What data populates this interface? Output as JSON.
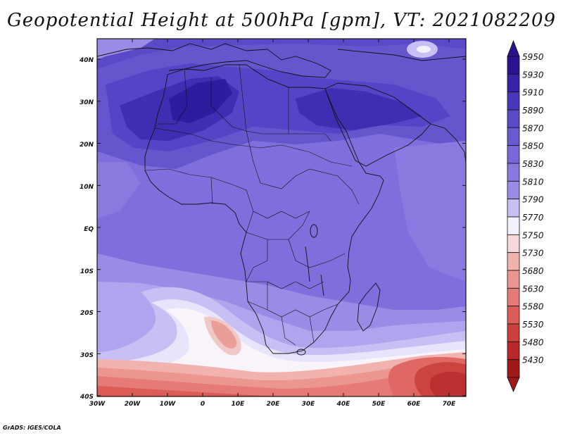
{
  "title": "Geopotential Height at 500hPa [gpm], VT: 2021082209",
  "credit": "GrADS: IGES/COLA",
  "lat_labels": [
    "40N",
    "30N",
    "20N",
    "10N",
    "EQ",
    "10S",
    "20S",
    "30S",
    "40S"
  ],
  "lon_labels": [
    "30W",
    "20W",
    "10W",
    "0",
    "10E",
    "20E",
    "30E",
    "40E",
    "50E",
    "60E",
    "70E"
  ],
  "colorbar": {
    "levels": [
      "5950",
      "5930",
      "5910",
      "5890",
      "5870",
      "5850",
      "5830",
      "5810",
      "5790",
      "5770",
      "5750",
      "5730",
      "5680",
      "5630",
      "5580",
      "5530",
      "5480",
      "5430"
    ],
    "colors": [
      "#2a1290",
      "#3a22a8",
      "#4836bc",
      "#5a4ac8",
      "#6a5ad2",
      "#7868da",
      "#8878e0",
      "#9a8ce6",
      "#c8c0f4",
      "#f4f0ff",
      "#f6d8d6",
      "#f2b2ae",
      "#ec9690",
      "#e67a76",
      "#dc5c58",
      "#cc403c",
      "#b82828",
      "#a01818"
    ]
  }
}
